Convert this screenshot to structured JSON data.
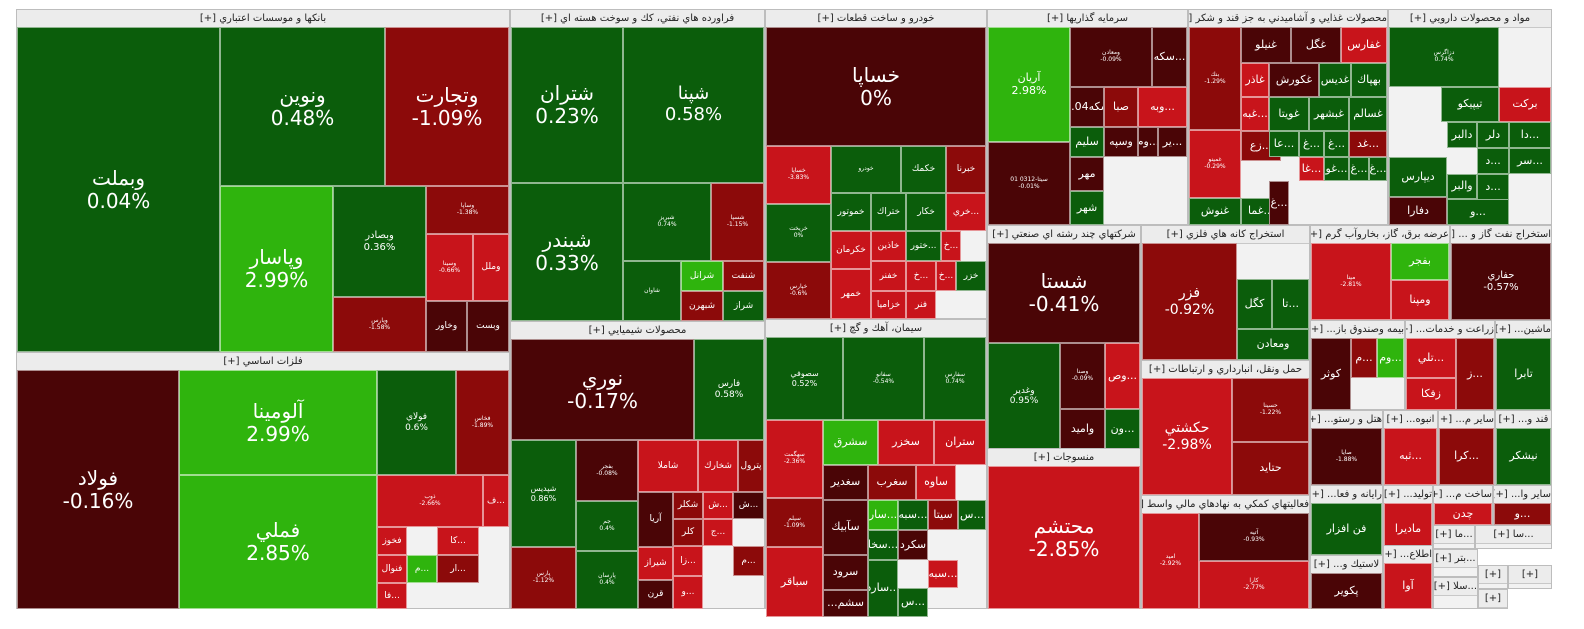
{
  "chart_data": {
    "type": "treemap",
    "colors": {
      "strong_pos": "#2fb40d",
      "pos": "#0b5d0b",
      "neg": "#8c0a0a",
      "strong_neg": "#c8141b",
      "dark_neg": "#4a0506"
    },
    "sectors": [
      {
        "name": "بانکها و موسسات اعتباري [+]",
        "tiles": [
          {
            "symbol": "وبملت",
            "value": "0.04%"
          },
          {
            "symbol": "ونوين",
            "value": "0.48%"
          },
          {
            "symbol": "وتجارت",
            "value": "-1.09%"
          },
          {
            "symbol": "وپاسار",
            "value": "2.99%"
          },
          {
            "symbol": "وبصادر",
            "value": "0.36%"
          },
          {
            "symbol": "وساپا",
            "value": "-1.38%"
          },
          {
            "symbol": "وسينا",
            "value": "-0.66%"
          },
          {
            "symbol": "وملل",
            "value": ""
          },
          {
            "symbol": "وخاور",
            "value": ""
          },
          {
            "symbol": "وبست",
            "value": ""
          },
          {
            "symbol": "وپارس",
            "value": "-1.58%"
          }
        ]
      },
      {
        "name": "فلزات اساسي [+]",
        "tiles": [
          {
            "symbol": "فولاد",
            "value": "-0.16%"
          },
          {
            "symbol": "آلومينا",
            "value": "2.99%"
          },
          {
            "symbol": "فملي",
            "value": "2.85%"
          },
          {
            "symbol": "فولاي",
            "value": "0.6%"
          },
          {
            "symbol": "فخاس",
            "value": "-1.89%"
          },
          {
            "symbol": "ذوب",
            "value": "-2.66%"
          },
          {
            "symbol": "...ف",
            "value": ""
          },
          {
            "symbol": "فخوز",
            "value": ""
          },
          {
            "symbol": "فنوال",
            "value": ""
          },
          {
            "symbol": "...كا",
            "value": ""
          },
          {
            "symbol": "...م",
            "value": ""
          },
          {
            "symbol": "...ار",
            "value": ""
          },
          {
            "symbol": "...فا",
            "value": ""
          }
        ]
      },
      {
        "name": "فراورده هاي نفتي، كك و سوخت هسته اي [+]",
        "tiles": [
          {
            "symbol": "شتران",
            "value": "0.23%"
          },
          {
            "symbol": "شپنا",
            "value": "0.58%"
          },
          {
            "symbol": "شبندر",
            "value": "0.33%"
          },
          {
            "symbol": "شبريز",
            "value": "0.74%"
          },
          {
            "symbol": "شسپا",
            "value": "-1.15%"
          },
          {
            "symbol": "شرانل",
            "value": ""
          },
          {
            "symbol": "شنفت",
            "value": ""
          },
          {
            "symbol": "شبهرن",
            "value": ""
          },
          {
            "symbol": "شراز",
            "value": ""
          },
          {
            "symbol": "شاوان",
            "value": ""
          }
        ]
      },
      {
        "name": "محصولات شيميايي [+]",
        "tiles": [
          {
            "symbol": "نوري",
            "value": "-0.17%"
          },
          {
            "symbol": "فارس",
            "value": "0.58%"
          },
          {
            "symbol": "شپديس",
            "value": "0.86%"
          },
          {
            "symbol": "پارس",
            "value": "-1.12%"
          },
          {
            "symbol": "بفجر",
            "value": "-0.08%"
          },
          {
            "symbol": "شاملا",
            "value": ""
          },
          {
            "symbol": "شخارك",
            "value": ""
          },
          {
            "symbol": "پترول",
            "value": ""
          },
          {
            "symbol": "آريا",
            "value": ""
          },
          {
            "symbol": "شكلر",
            "value": ""
          },
          {
            "symbol": "...ش",
            "value": ""
          },
          {
            "symbol": "...ش",
            "value": ""
          },
          {
            "symbol": "شيراز",
            "value": ""
          },
          {
            "symbol": "قرن",
            "value": ""
          },
          {
            "symbol": "كلر",
            "value": ""
          },
          {
            "symbol": "...زا",
            "value": ""
          },
          {
            "symbol": "...ج",
            "value": ""
          },
          {
            "symbol": "...م",
            "value": ""
          },
          {
            "symbol": "...و",
            "value": ""
          },
          {
            "symbol": "جم",
            "value": "0.4%"
          },
          {
            "symbol": "پارسان",
            "value": "0.4%"
          }
        ]
      },
      {
        "name": "خودرو و ساخت قطعات [+]",
        "tiles": [
          {
            "symbol": "خساپا",
            "value": "0%"
          },
          {
            "symbol": "خساپا",
            "value": "-3.83%"
          },
          {
            "symbol": "خودرو",
            "value": ""
          },
          {
            "symbol": "خكمك",
            "value": ""
          },
          {
            "symbol": "خبرنا",
            "value": ""
          },
          {
            "symbol": "خموتور",
            "value": ""
          },
          {
            "symbol": "ختراك",
            "value": ""
          },
          {
            "symbol": "خكار",
            "value": ""
          },
          {
            "symbol": "...خري",
            "value": ""
          },
          {
            "symbol": "خكرمان",
            "value": ""
          },
          {
            "symbol": "خاذين",
            "value": ""
          },
          {
            "symbol": "...ختور",
            "value": ""
          },
          {
            "symbol": "...خ",
            "value": ""
          },
          {
            "symbol": "خمهر",
            "value": ""
          },
          {
            "symbol": "خفنر",
            "value": ""
          },
          {
            "symbol": "...خ",
            "value": ""
          },
          {
            "symbol": "...خ",
            "value": ""
          },
          {
            "symbol": "خزر",
            "value": ""
          },
          {
            "symbol": "خزاميا",
            "value": ""
          },
          {
            "symbol": "فنر",
            "value": ""
          },
          {
            "symbol": "خريخت",
            "value": "0%"
          },
          {
            "symbol": "خپارس",
            "value": "-0.6%"
          }
        ]
      },
      {
        "name": "سيمان، آهك و گچ [+]",
        "tiles": [
          {
            "symbol": "سصوفي",
            "value": "0.52%"
          },
          {
            "symbol": "سفانو",
            "value": "-0.54%"
          },
          {
            "symbol": "سفارس",
            "value": "0.74%"
          },
          {
            "symbol": "سهگمت",
            "value": "-2.36%"
          },
          {
            "symbol": "سشرق",
            "value": ""
          },
          {
            "symbol": "سخزر",
            "value": ""
          },
          {
            "symbol": "ستران",
            "value": ""
          },
          {
            "symbol": "سغدير",
            "value": ""
          },
          {
            "symbol": "سغرب",
            "value": ""
          },
          {
            "symbol": "ساوه",
            "value": ""
          },
          {
            "symbol": "سيلم",
            "value": "-1.09%"
          },
          {
            "symbol": "سآبيك",
            "value": ""
          },
          {
            "symbol": "...سار",
            "value": ""
          },
          {
            "symbol": "...سبه",
            "value": ""
          },
          {
            "symbol": "سيتا",
            "value": ""
          },
          {
            "symbol": "...س",
            "value": ""
          },
          {
            "symbol": "سرود",
            "value": ""
          },
          {
            "symbol": "...سخا",
            "value": ""
          },
          {
            "symbol": "سكرد",
            "value": ""
          },
          {
            "symbol": "...سبه",
            "value": ""
          },
          {
            "symbol": "سباقر",
            "value": ""
          },
          {
            "symbol": "سشم...",
            "value": ""
          },
          {
            "symbol": "...سارد",
            "value": ""
          },
          {
            "symbol": "...س",
            "value": ""
          }
        ]
      },
      {
        "name": "سرمايه گذاريها [+]",
        "tiles": [
          {
            "symbol": "آريان",
            "value": "2.98%"
          },
          {
            "symbol": "ومعادن",
            "value": "-0.09%"
          },
          {
            "symbol": "...سكه",
            "value": ""
          },
          {
            "symbol": "سكه04...",
            "value": ""
          },
          {
            "symbol": "صبا",
            "value": ""
          },
          {
            "symbol": "...وبه",
            "value": ""
          },
          {
            "symbol": "سيتا-0312 01",
            "value": "-0.01%"
          },
          {
            "symbol": "سليم",
            "value": ""
          },
          {
            "symbol": "وسپه",
            "value": ""
          },
          {
            "symbol": "...وم",
            "value": ""
          },
          {
            "symbol": "...ير",
            "value": ""
          },
          {
            "symbol": "مهر",
            "value": ""
          },
          {
            "symbol": "شهر",
            "value": ""
          }
        ]
      },
      {
        "name": "محصولات غذايي و آشاميدني به جز قند و شكر [+]",
        "tiles": [
          {
            "symbol": "غنيلو",
            "value": ""
          },
          {
            "symbol": "غگل",
            "value": ""
          },
          {
            "symbol": "غفارس",
            "value": ""
          },
          {
            "symbol": "بنك",
            "value": "-1.29%"
          },
          {
            "symbol": "غاذر",
            "value": ""
          },
          {
            "symbol": "غكورش",
            "value": ""
          },
          {
            "symbol": "غديس",
            "value": ""
          },
          {
            "symbol": "بهپاك",
            "value": ""
          },
          {
            "symbol": "...غبه",
            "value": ""
          },
          {
            "symbol": "غويتا",
            "value": ""
          },
          {
            "symbol": "غبشهر",
            "value": ""
          },
          {
            "symbol": "غسالم",
            "value": ""
          },
          {
            "symbol": "غمينو",
            "value": "-0.29%"
          },
          {
            "symbol": "...زع",
            "value": ""
          },
          {
            "symbol": "...عا",
            "value": ""
          },
          {
            "symbol": "...غ",
            "value": ""
          },
          {
            "symbol": "...غ",
            "value": ""
          },
          {
            "symbol": "...غد",
            "value": ""
          },
          {
            "symbol": "...غا",
            "value": ""
          },
          {
            "symbol": "...غو",
            "value": ""
          },
          {
            "symbol": "...غ",
            "value": ""
          },
          {
            "symbol": "...غ",
            "value": ""
          },
          {
            "symbol": "غنوش",
            "value": ""
          },
          {
            "symbol": "...غما",
            "value": ""
          },
          {
            "symbol": "...غ",
            "value": ""
          }
        ]
      },
      {
        "name": "مواد و محصولات دارويي [+]",
        "tiles": [
          {
            "symbol": "دزاگرس",
            "value": "0.74%"
          },
          {
            "symbol": "تيپيكو",
            "value": ""
          },
          {
            "symbol": "بركت",
            "value": ""
          },
          {
            "symbol": "دالبر",
            "value": ""
          },
          {
            "symbol": "دلر",
            "value": ""
          },
          {
            "symbol": "...دا",
            "value": ""
          },
          {
            "symbol": "...سر",
            "value": ""
          },
          {
            "symbol": "...د",
            "value": ""
          },
          {
            "symbol": "...د",
            "value": ""
          },
          {
            "symbol": "ديپارس",
            "value": ""
          },
          {
            "symbol": "والبر",
            "value": ""
          },
          {
            "symbol": "دفارا",
            "value": ""
          },
          {
            "symbol": "...و",
            "value": ""
          }
        ]
      },
      {
        "name": "شركتهاي چند رشته اي صنعتي [+]",
        "tiles": [
          {
            "symbol": "شستا",
            "value": "-0.41%"
          },
          {
            "symbol": "وغدير",
            "value": "0.95%"
          },
          {
            "symbol": "وصنا",
            "value": "-0.09%"
          },
          {
            "symbol": "...وص",
            "value": ""
          },
          {
            "symbol": "واميد",
            "value": ""
          },
          {
            "symbol": "...ون",
            "value": ""
          }
        ]
      },
      {
        "name": "استخراج كانه هاي فلزي [+]",
        "tiles": [
          {
            "symbol": "فزر",
            "value": "-0.92%"
          },
          {
            "symbol": "كگل",
            "value": ""
          },
          {
            "symbol": "...تا",
            "value": ""
          },
          {
            "symbol": "ومعادن",
            "value": ""
          }
        ]
      },
      {
        "name": "عرضه برق، گاز، بخاروآب گرم [+]",
        "tiles": [
          {
            "symbol": "مپنا",
            "value": "-2.81%"
          },
          {
            "symbol": "بفجر",
            "value": ""
          },
          {
            "symbol": "ومپنا",
            "value": ""
          }
        ]
      },
      {
        "name": "استخراج نفت گاز و ... [+]",
        "tiles": [
          {
            "symbol": "حفاري",
            "value": "-0.57%"
          }
        ]
      },
      {
        "name": "حمل ونقل، انبارداري و ارتباطات [+]",
        "tiles": [
          {
            "symbol": "حكشتي",
            "value": "-2.98%"
          },
          {
            "symbol": "حسينا",
            "value": "-1.22%"
          },
          {
            "symbol": "حتايد",
            "value": ""
          }
        ]
      },
      {
        "name": "منسوجات [+]",
        "tiles": [
          {
            "symbol": "محتشم",
            "value": "-2.85%"
          }
        ]
      },
      {
        "name": "فعاليتهاي كمكي به نهادهاي مالي واسط [+]",
        "tiles": [
          {
            "symbol": "اميد",
            "value": "-2.92%"
          },
          {
            "symbol": "آتيه",
            "value": "-0.93%"
          },
          {
            "symbol": "كارا",
            "value": "-2.77%"
          }
        ]
      },
      {
        "name": "بيمه وصندوق باز... [+]",
        "tiles": [
          {
            "symbol": "كوثر",
            "value": ""
          },
          {
            "symbol": "...م",
            "value": ""
          },
          {
            "symbol": "...وم",
            "value": ""
          }
        ]
      },
      {
        "name": "زراعت و خدمات... [+]",
        "tiles": [
          {
            "symbol": "...تلي",
            "value": ""
          },
          {
            "symbol": "زفكا",
            "value": ""
          },
          {
            "symbol": "...ز",
            "value": ""
          }
        ]
      },
      {
        "name": "ماشين... [+]",
        "tiles": [
          {
            "symbol": "تابرا",
            "value": ""
          }
        ]
      },
      {
        "name": "هتل و رستو... [+]",
        "tiles": [
          {
            "symbol": "صايا",
            "value": "-1.88%"
          }
        ]
      },
      {
        "name": "انبوه... [+]",
        "tiles": [
          {
            "symbol": "...ثبه",
            "value": ""
          }
        ]
      },
      {
        "name": "ساير م... [+]",
        "tiles": [
          {
            "symbol": "...كرا",
            "value": ""
          }
        ]
      },
      {
        "name": "قند و... [+]",
        "tiles": [
          {
            "symbol": "نيشكر",
            "value": ""
          },
          {
            "symbol": "...قص",
            "value": ""
          }
        ]
      },
      {
        "name": "رايانه و فعا... [+]",
        "tiles": [
          {
            "symbol": "فن افزار",
            "value": ""
          }
        ]
      },
      {
        "name": "توليد... [+]",
        "tiles": [
          {
            "symbol": "ماديرا",
            "value": ""
          }
        ]
      },
      {
        "name": "ساخت م... [+]",
        "tiles": [
          {
            "symbol": "چدن",
            "value": ""
          }
        ]
      },
      {
        "name": "ساير وا... [+]",
        "tiles": [
          {
            "symbol": "...و",
            "value": ""
          }
        ]
      },
      {
        "name": "لاستيك و... [+]",
        "tiles": [
          {
            "symbol": "پكوير",
            "value": ""
          }
        ]
      },
      {
        "name": "اطلاع... [+]",
        "tiles": [
          {
            "symbol": "آوا",
            "value": ""
          }
        ]
      },
      {
        "name": "...ما [+]",
        "tiles": []
      },
      {
        "name": "...سا [+]",
        "tiles": []
      },
      {
        "name": "...بتر [+]",
        "tiles": []
      },
      {
        "name": "...سلا [+]",
        "tiles": []
      },
      {
        "name": "[+]",
        "tiles": []
      },
      {
        "name": "[+]",
        "tiles": []
      },
      {
        "name": "[+]",
        "tiles": []
      }
    ]
  }
}
